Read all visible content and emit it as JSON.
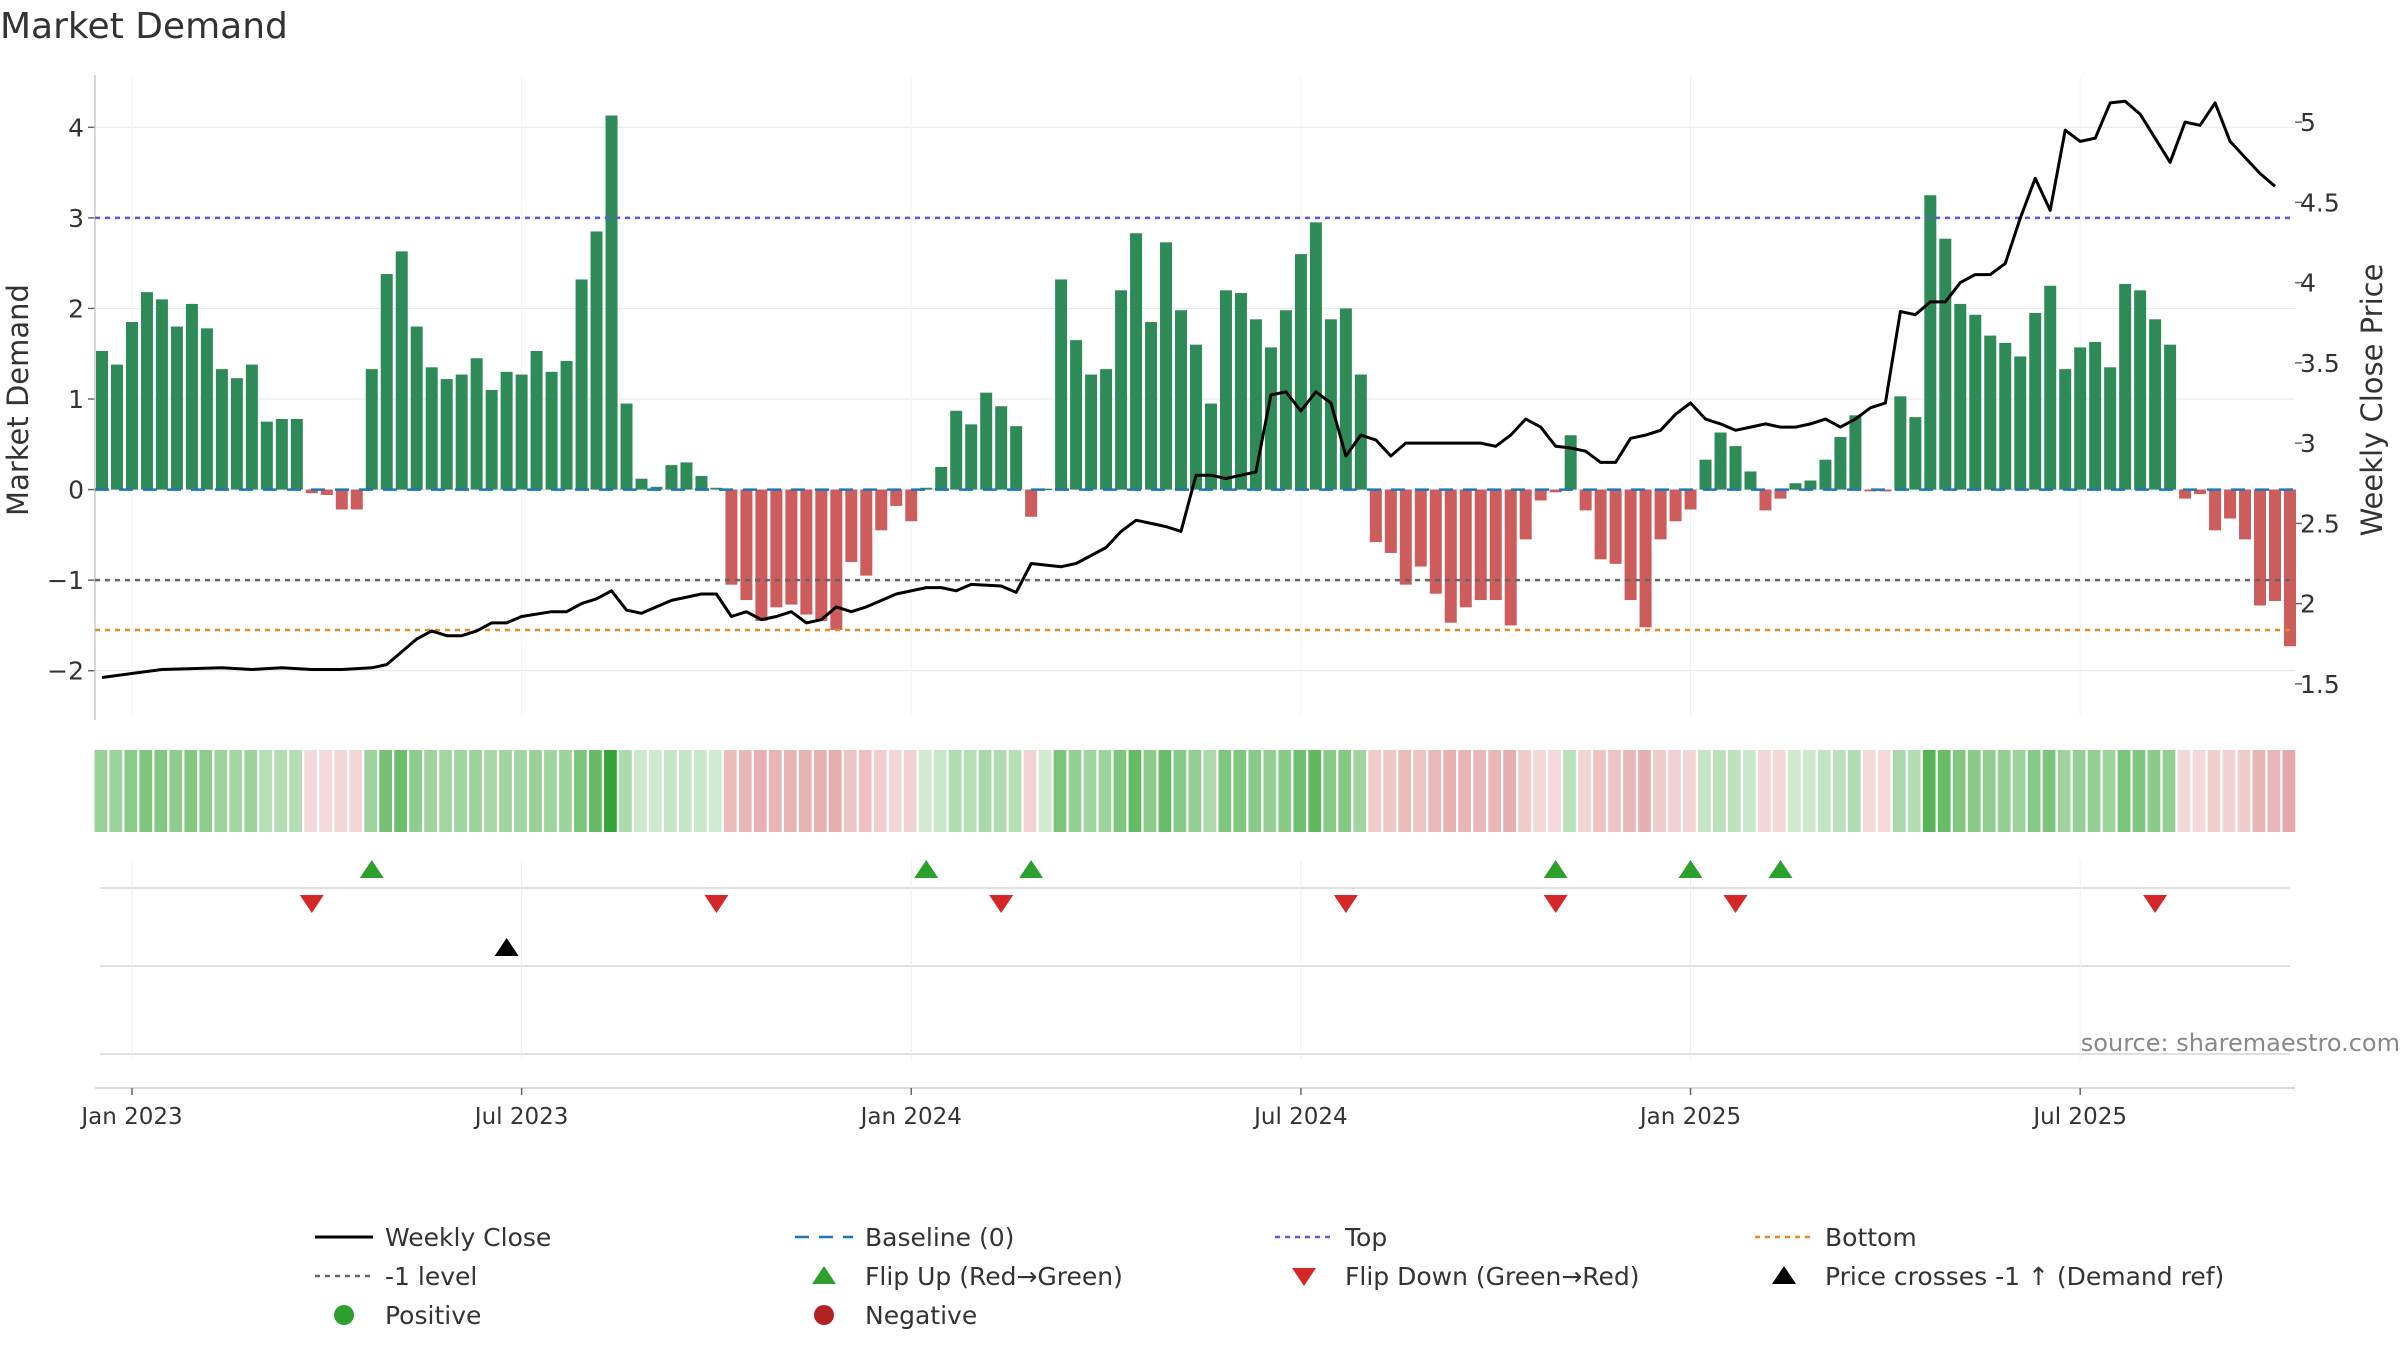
{
  "chart_data": {
    "type": "bar",
    "title": "Market Demand",
    "ylabel": "Market Demand",
    "y2label": "Weekly Close Price",
    "source": "source: sharemaestro.com",
    "ylim": [
      -2.5,
      4.5
    ],
    "y2lim": [
      1.3,
      5.25
    ],
    "yticks": [
      {
        "v": 4,
        "label": "4"
      },
      {
        "v": 3,
        "label": "3"
      },
      {
        "v": 2,
        "label": "2"
      },
      {
        "v": 1,
        "label": "1"
      },
      {
        "v": 0,
        "label": "0"
      },
      {
        "v": -1,
        "label": "−1"
      },
      {
        "v": -2,
        "label": "−2"
      }
    ],
    "y2ticks": [
      {
        "v": 5,
        "label": "5"
      },
      {
        "v": 4.5,
        "label": "4.5"
      },
      {
        "v": 4,
        "label": "4"
      },
      {
        "v": 3.5,
        "label": "3.5"
      },
      {
        "v": 3,
        "label": "3"
      },
      {
        "v": 2.5,
        "label": "2.5"
      },
      {
        "v": 2,
        "label": "2"
      },
      {
        "v": 1.5,
        "label": "1.5"
      }
    ],
    "xticks": [
      {
        "week": 2,
        "label": "Jan 2023"
      },
      {
        "week": 28,
        "label": "Jul 2023"
      },
      {
        "week": 54,
        "label": "Jan 2024"
      },
      {
        "week": 80,
        "label": "Jul 2024"
      },
      {
        "week": 106,
        "label": "Jan 2025"
      },
      {
        "week": 132,
        "label": "Jul 2025"
      }
    ],
    "reference_lines": [
      {
        "name": "Baseline (0)",
        "value": 0,
        "color": "#1f77b4",
        "dash": "14,10"
      },
      {
        "name": "Top",
        "value": 3,
        "color": "#5b5bd6",
        "dash": "5,5"
      },
      {
        "name": "-1 level",
        "value": -1,
        "color": "#666666",
        "dash": "5,5"
      },
      {
        "name": "Bottom",
        "value": -1.55,
        "color": "#e8881f",
        "dash": "5,5"
      }
    ],
    "demand": [
      1.53,
      1.38,
      1.85,
      2.18,
      2.1,
      1.8,
      2.05,
      1.78,
      1.33,
      1.23,
      1.38,
      0.75,
      0.78,
      0.78,
      -0.04,
      -0.06,
      -0.22,
      -0.22,
      1.33,
      2.38,
      2.63,
      1.8,
      1.35,
      1.22,
      1.27,
      1.45,
      1.1,
      1.3,
      1.27,
      1.53,
      1.3,
      1.42,
      2.32,
      2.85,
      4.13,
      0.95,
      0.12,
      0.03,
      0.27,
      0.3,
      0.15,
      0.02,
      -1.05,
      -1.22,
      -1.45,
      -1.3,
      -1.27,
      -1.38,
      -1.45,
      -1.55,
      -0.8,
      -0.95,
      -0.45,
      -0.18,
      -0.35,
      0.02,
      0.25,
      0.87,
      0.72,
      1.07,
      0.92,
      0.7,
      -0.3,
      0.01,
      2.32,
      1.65,
      1.27,
      1.33,
      2.2,
      2.83,
      1.85,
      2.73,
      1.98,
      1.6,
      0.95,
      2.2,
      2.17,
      1.88,
      1.57,
      1.98,
      2.6,
      2.95,
      1.88,
      2.0,
      1.27,
      -0.58,
      -0.7,
      -1.05,
      -0.85,
      -1.15,
      -1.47,
      -1.3,
      -1.22,
      -1.22,
      -1.5,
      -0.55,
      -0.12,
      -0.03,
      0.6,
      -0.23,
      -0.77,
      -0.82,
      -1.22,
      -1.52,
      -0.55,
      -0.35,
      -0.22,
      0.33,
      0.63,
      0.48,
      0.2,
      -0.23,
      -0.1,
      0.07,
      0.1,
      0.33,
      0.58,
      0.82,
      -0.02,
      -0.02,
      1.03,
      0.8,
      3.25,
      2.77,
      2.05,
      1.93,
      1.7,
      1.62,
      1.47,
      1.95,
      2.25,
      1.33,
      1.57,
      1.63,
      1.35,
      2.27,
      2.2,
      1.88,
      1.6,
      -0.1,
      -0.05,
      -0.45,
      -0.32,
      -0.55,
      -1.28,
      -1.23,
      -1.73
    ],
    "weekly_close": [
      [
        0,
        1.54
      ],
      [
        4,
        1.59
      ],
      [
        8,
        1.6
      ],
      [
        10,
        1.59
      ],
      [
        12,
        1.6
      ],
      [
        14,
        1.59
      ],
      [
        16,
        1.59
      ],
      [
        18,
        1.6
      ],
      [
        19,
        1.62
      ],
      [
        21,
        1.78
      ],
      [
        22,
        1.83
      ],
      [
        23,
        1.8
      ],
      [
        24,
        1.8
      ],
      [
        25,
        1.83
      ],
      [
        26,
        1.88
      ],
      [
        27,
        1.88
      ],
      [
        28,
        1.92
      ],
      [
        30,
        1.95
      ],
      [
        31,
        1.95
      ],
      [
        32,
        2.0
      ],
      [
        33,
        2.03
      ],
      [
        34,
        2.08
      ],
      [
        35,
        1.96
      ],
      [
        36,
        1.94
      ],
      [
        38,
        2.02
      ],
      [
        40,
        2.06
      ],
      [
        41,
        2.06
      ],
      [
        42,
        1.92
      ],
      [
        43,
        1.95
      ],
      [
        44,
        1.9
      ],
      [
        45,
        1.92
      ],
      [
        46,
        1.95
      ],
      [
        47,
        1.88
      ],
      [
        48,
        1.9
      ],
      [
        49,
        1.98
      ],
      [
        50,
        1.95
      ],
      [
        51,
        1.98
      ],
      [
        53,
        2.06
      ],
      [
        55,
        2.1
      ],
      [
        56,
        2.1
      ],
      [
        57,
        2.08
      ],
      [
        58,
        2.12
      ],
      [
        60,
        2.11
      ],
      [
        61,
        2.07
      ],
      [
        62,
        2.25
      ],
      [
        63,
        2.24
      ],
      [
        64,
        2.23
      ],
      [
        65,
        2.25
      ],
      [
        66,
        2.3
      ],
      [
        67,
        2.35
      ],
      [
        68,
        2.45
      ],
      [
        69,
        2.52
      ],
      [
        70,
        2.5
      ],
      [
        71,
        2.48
      ],
      [
        72,
        2.45
      ],
      [
        73,
        2.8
      ],
      [
        74,
        2.8
      ],
      [
        75,
        2.78
      ],
      [
        76,
        2.8
      ],
      [
        77,
        2.82
      ],
      [
        78,
        3.3
      ],
      [
        79,
        3.32
      ],
      [
        80,
        3.2
      ],
      [
        81,
        3.32
      ],
      [
        82,
        3.25
      ],
      [
        83,
        2.92
      ],
      [
        84,
        3.05
      ],
      [
        85,
        3.02
      ],
      [
        86,
        2.92
      ],
      [
        87,
        3.0
      ],
      [
        88,
        3.0
      ],
      [
        89,
        3.0
      ],
      [
        90,
        3.0
      ],
      [
        91,
        3.0
      ],
      [
        92,
        3.0
      ],
      [
        93,
        2.98
      ],
      [
        94,
        3.05
      ],
      [
        95,
        3.15
      ],
      [
        96,
        3.1
      ],
      [
        97,
        2.98
      ],
      [
        98,
        2.97
      ],
      [
        99,
        2.95
      ],
      [
        100,
        2.88
      ],
      [
        101,
        2.88
      ],
      [
        102,
        3.03
      ],
      [
        103,
        3.05
      ],
      [
        104,
        3.08
      ],
      [
        105,
        3.18
      ],
      [
        106,
        3.25
      ],
      [
        107,
        3.15
      ],
      [
        108,
        3.12
      ],
      [
        109,
        3.08
      ],
      [
        110,
        3.1
      ],
      [
        111,
        3.12
      ],
      [
        112,
        3.1
      ],
      [
        113,
        3.1
      ],
      [
        114,
        3.12
      ],
      [
        115,
        3.15
      ],
      [
        116,
        3.1
      ],
      [
        117,
        3.15
      ],
      [
        118,
        3.22
      ],
      [
        119,
        3.25
      ],
      [
        120,
        3.82
      ],
      [
        121,
        3.8
      ],
      [
        122,
        3.88
      ],
      [
        123,
        3.88
      ],
      [
        124,
        4.0
      ],
      [
        125,
        4.05
      ],
      [
        126,
        4.05
      ],
      [
        127,
        4.12
      ],
      [
        128,
        4.4
      ],
      [
        129,
        4.65
      ],
      [
        130,
        4.45
      ],
      [
        131,
        4.95
      ],
      [
        132,
        4.88
      ],
      [
        133,
        4.9
      ],
      [
        134,
        5.12
      ],
      [
        135,
        5.13
      ],
      [
        136,
        5.05
      ],
      [
        137,
        4.9
      ],
      [
        138,
        4.75
      ],
      [
        139,
        5.0
      ],
      [
        140,
        4.98
      ],
      [
        141,
        5.12
      ],
      [
        142,
        4.88
      ],
      [
        143,
        4.78
      ],
      [
        144,
        4.68
      ],
      [
        145,
        4.6
      ]
    ],
    "flip_up_weeks": [
      18,
      55,
      62,
      97,
      106,
      112
    ],
    "flip_down_weeks": [
      14,
      41,
      60,
      83,
      97,
      109,
      137
    ],
    "cross_weeks": [
      27
    ],
    "legend": [
      {
        "key": "weekly_close",
        "label": "Weekly Close",
        "marker": "line",
        "color": "#000000"
      },
      {
        "key": "baseline",
        "label": "Baseline (0)",
        "marker": "dashed",
        "color": "#1f77b4"
      },
      {
        "key": "top",
        "label": "Top",
        "marker": "dotted",
        "color": "#5b5bd6"
      },
      {
        "key": "bottom",
        "label": "Bottom",
        "marker": "dotted",
        "color": "#e8881f"
      },
      {
        "key": "minus_one",
        "label": "-1 level",
        "marker": "dotted",
        "color": "#666666"
      },
      {
        "key": "flip_up",
        "label": "Flip Up (Red→Green)",
        "marker": "tri-up",
        "color": "#2ca02c"
      },
      {
        "key": "flip_down",
        "label": "Flip Down (Green→Red)",
        "marker": "tri-down",
        "color": "#d62728"
      },
      {
        "key": "cross",
        "label": "Price crosses -1 ↑ (Demand ref)",
        "marker": "tri-up",
        "color": "#000000"
      },
      {
        "key": "positive",
        "label": "Positive",
        "marker": "circle",
        "color": "#2ca02c"
      },
      {
        "key": "negative",
        "label": "Negative",
        "marker": "circle",
        "color": "#b22222"
      }
    ],
    "colors": {
      "positive_bar": "#2e8b57",
      "negative_bar": "#cd5c5c",
      "price_line": "#000000",
      "grid": "#e6e6e6"
    }
  }
}
